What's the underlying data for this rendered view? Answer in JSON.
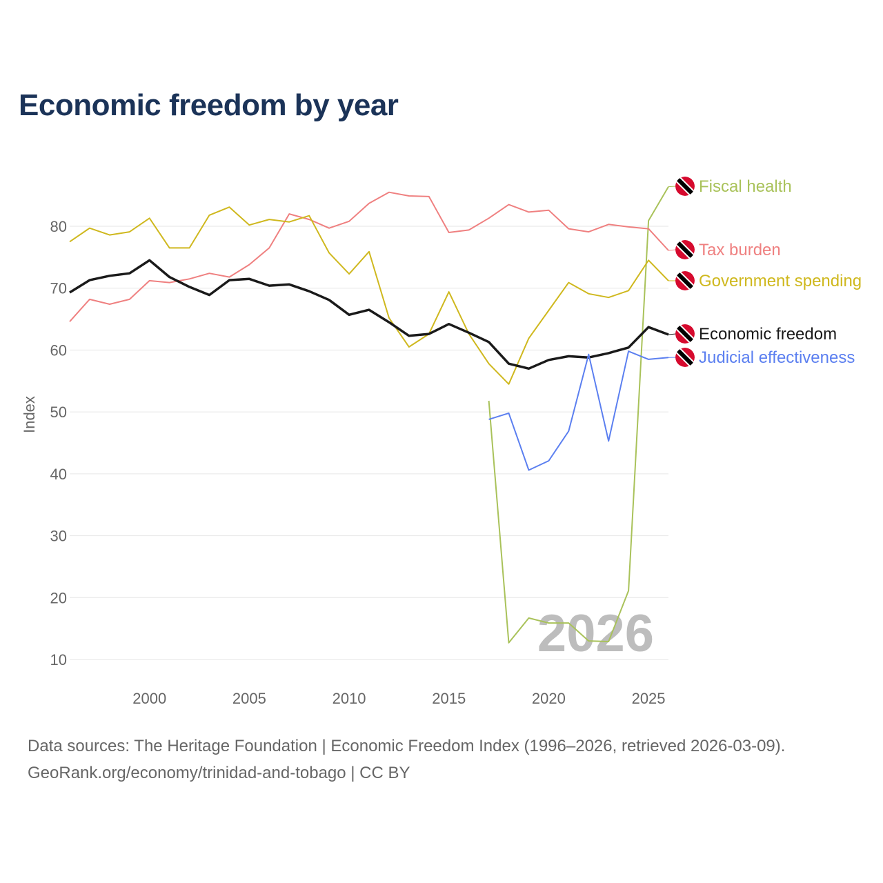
{
  "chart_data": {
    "type": "line",
    "title": "Economic freedom by year",
    "xlabel": "",
    "ylabel": "Index",
    "xlim": [
      1996,
      2026
    ],
    "ylim": [
      5,
      95
    ],
    "x_ticks": [
      2000,
      2005,
      2010,
      2015,
      2020,
      2025
    ],
    "y_ticks": [
      10,
      20,
      30,
      40,
      50,
      60,
      70,
      80
    ],
    "grid": true,
    "legend": "end-of-line labels, right",
    "watermark_year": "2026",
    "series": [
      {
        "name": "Fiscal health",
        "color": "#a9c25a",
        "start_year": 2017,
        "values": [
          51.8,
          12.7,
          16.7,
          15.9,
          15.9,
          13.0,
          12.9,
          21.1,
          80.9,
          86.4
        ]
      },
      {
        "name": "Tax burden",
        "color": "#ef8080",
        "start_year": 1996,
        "values": [
          64.6,
          68.2,
          67.4,
          68.2,
          71.2,
          70.9,
          71.5,
          72.4,
          71.8,
          73.8,
          76.5,
          82.0,
          81.1,
          79.7,
          80.8,
          83.7,
          85.5,
          84.9,
          84.8,
          79.0,
          79.4,
          81.3,
          83.5,
          82.3,
          82.6,
          79.6,
          79.1,
          80.3,
          79.9,
          79.6,
          76.1
        ]
      },
      {
        "name": "Government spending",
        "color": "#cfb81e",
        "start_year": 1996,
        "values": [
          77.5,
          79.7,
          78.6,
          79.1,
          81.3,
          76.5,
          76.5,
          81.8,
          83.1,
          80.2,
          81.1,
          80.7,
          81.7,
          75.7,
          72.3,
          75.9,
          65.2,
          60.5,
          62.6,
          69.4,
          62.6,
          57.8,
          54.5,
          61.9,
          66.4,
          70.9,
          69.1,
          68.5,
          69.6,
          74.5,
          71.2
        ]
      },
      {
        "name": "Economic freedom",
        "color": "#1a1a1a",
        "start_year": 1996,
        "values": [
          69.3,
          71.3,
          72.0,
          72.4,
          74.5,
          71.8,
          70.2,
          68.9,
          71.3,
          71.5,
          70.4,
          70.6,
          69.5,
          68.1,
          65.7,
          66.5,
          64.5,
          62.3,
          62.6,
          64.2,
          62.8,
          61.3,
          57.8,
          57.0,
          58.4,
          59.0,
          58.8,
          59.5,
          60.4,
          63.7,
          62.5
        ]
      },
      {
        "name": "Judicial effectiveness",
        "color": "#5b7ff0",
        "start_year": 2017,
        "values": [
          48.8,
          49.8,
          40.6,
          42.1,
          46.9,
          59.3,
          45.3,
          59.8,
          58.5,
          58.8
        ]
      }
    ]
  },
  "footer": {
    "line1": "Data sources: The Heritage Foundation | Economic Freedom Index (1996–2026, retrieved 2026-03-09).",
    "line2": "GeoRank.org/economy/trinidad-and-tobago | CC BY"
  }
}
